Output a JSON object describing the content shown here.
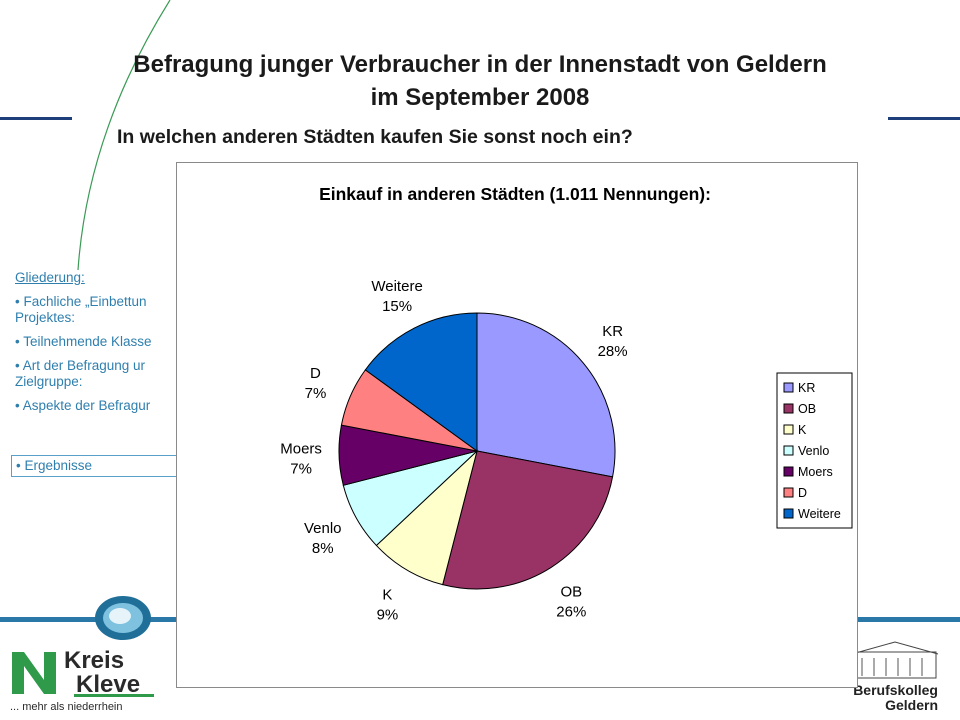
{
  "header": {
    "title_line1": "Befragung junger Verbraucher in der Innenstadt von Geldern",
    "title_line2": "im September 2008",
    "question": "In welchen anderen Städten kaufen Sie sonst noch ein?"
  },
  "outline": {
    "heading": "Gliederung:",
    "items": [
      "• Fachliche „Einbettun",
      "Projektes:",
      "• Teilnehmende Klasse",
      "•  Art der Befragung ur",
      "Zielgruppe:",
      "• Aspekte der Befragur"
    ],
    "active": "• Ergebnisse"
  },
  "logos": {
    "kreis_line1": "Kreis",
    "kreis_line2": "Kleve",
    "kreis_tagline": "... mehr als niederrhein",
    "school_line1": "Berufskolleg",
    "school_line2": "Geldern"
  },
  "colors": {
    "accent_line": "#1f3f7a",
    "outline_text": "#2f7fae",
    "band": "#2a78a8"
  },
  "chart_data": {
    "type": "pie",
    "title": "Einkauf in anderen Städten (1.011 Nennungen):",
    "categories": [
      "KR",
      "OB",
      "K",
      "Venlo",
      "Moers",
      "D",
      "Weitere"
    ],
    "values": [
      28,
      26,
      9,
      8,
      7,
      7,
      15
    ],
    "labels": [
      "28%",
      "26%",
      "9%",
      "8%",
      "7%",
      "7%",
      "15%"
    ],
    "colors": [
      "#9999ff",
      "#993366",
      "#ffffcc",
      "#ccffff",
      "#660066",
      "#ff8080",
      "#0066cc"
    ],
    "legend": "right"
  }
}
